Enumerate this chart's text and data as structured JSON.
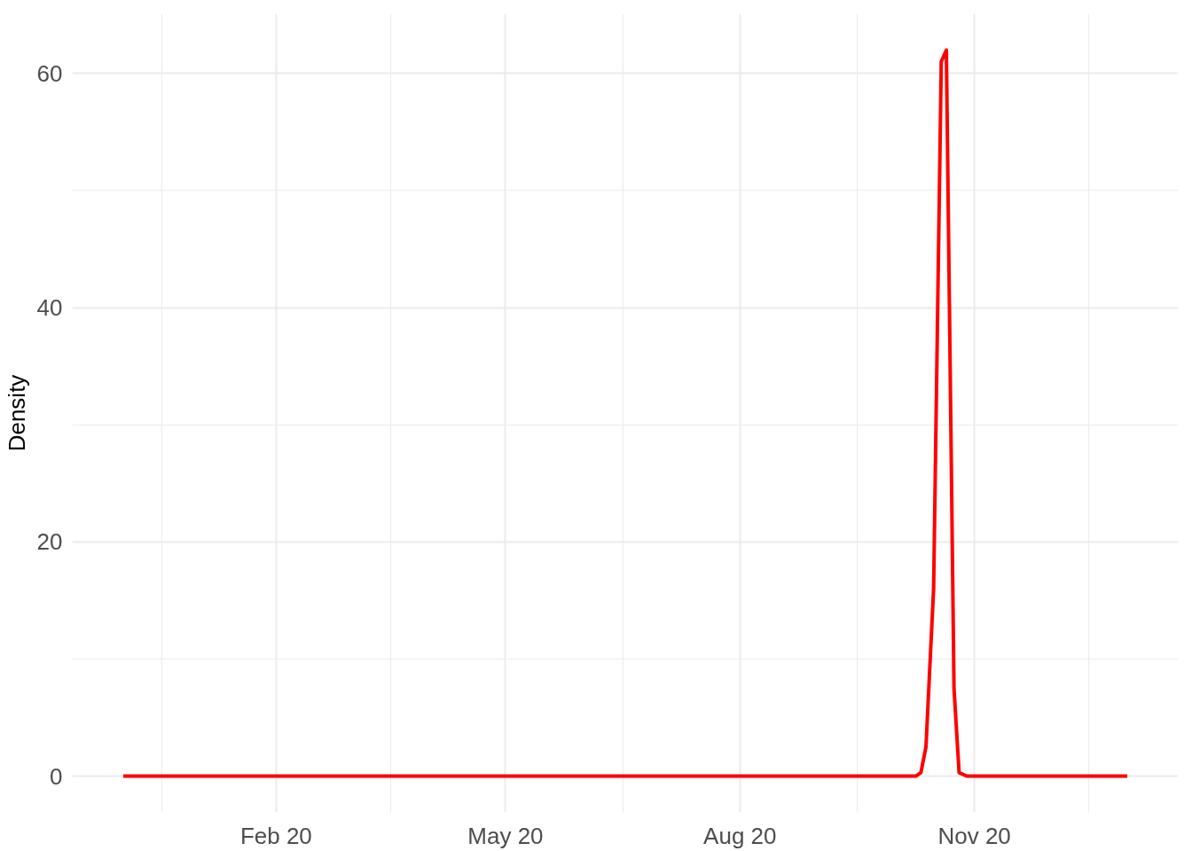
{
  "chart_data": {
    "type": "line",
    "ylabel": "Density",
    "x": [
      "2019-12-03",
      "2020-01-15",
      "2020-03-01",
      "2020-04-15",
      "2020-06-01",
      "2020-07-15",
      "2020-09-01",
      "2020-09-15",
      "2020-10-01",
      "2020-10-09",
      "2020-10-11",
      "2020-10-13",
      "2020-10-16",
      "2020-10-19",
      "2020-10-21",
      "2020-10-24",
      "2020-10-26",
      "2020-10-29",
      "2020-11-15",
      "2020-12-31"
    ],
    "series": [
      {
        "color": "#ff0000",
        "values": [
          0,
          0,
          0,
          0,
          0,
          0,
          0,
          0,
          0,
          0,
          0.3,
          2.5,
          16,
          61,
          62,
          7.5,
          0.3,
          0,
          0,
          0
        ]
      }
    ],
    "xlim": [
      "2019-11-13",
      "2021-01-20"
    ],
    "ylim": [
      -3.1,
      65.1
    ],
    "xticks": [
      {
        "value": "2019-12-18",
        "label": null
      },
      {
        "value": "2020-02-01",
        "label": "Feb 20"
      },
      {
        "value": "2020-03-17",
        "label": null
      },
      {
        "value": "2020-05-01",
        "label": "May 20"
      },
      {
        "value": "2020-06-16",
        "label": null
      },
      {
        "value": "2020-08-01",
        "label": "Aug 20"
      },
      {
        "value": "2020-09-16",
        "label": null
      },
      {
        "value": "2020-11-01",
        "label": "Nov 20"
      },
      {
        "value": "2020-12-16",
        "label": null
      }
    ],
    "yticks": [
      0,
      {
        "value": 10,
        "label": null
      },
      20,
      {
        "value": 30,
        "label": null
      },
      40,
      {
        "value": 50,
        "label": null
      },
      60
    ],
    "grid": true,
    "line_style": "solid"
  }
}
